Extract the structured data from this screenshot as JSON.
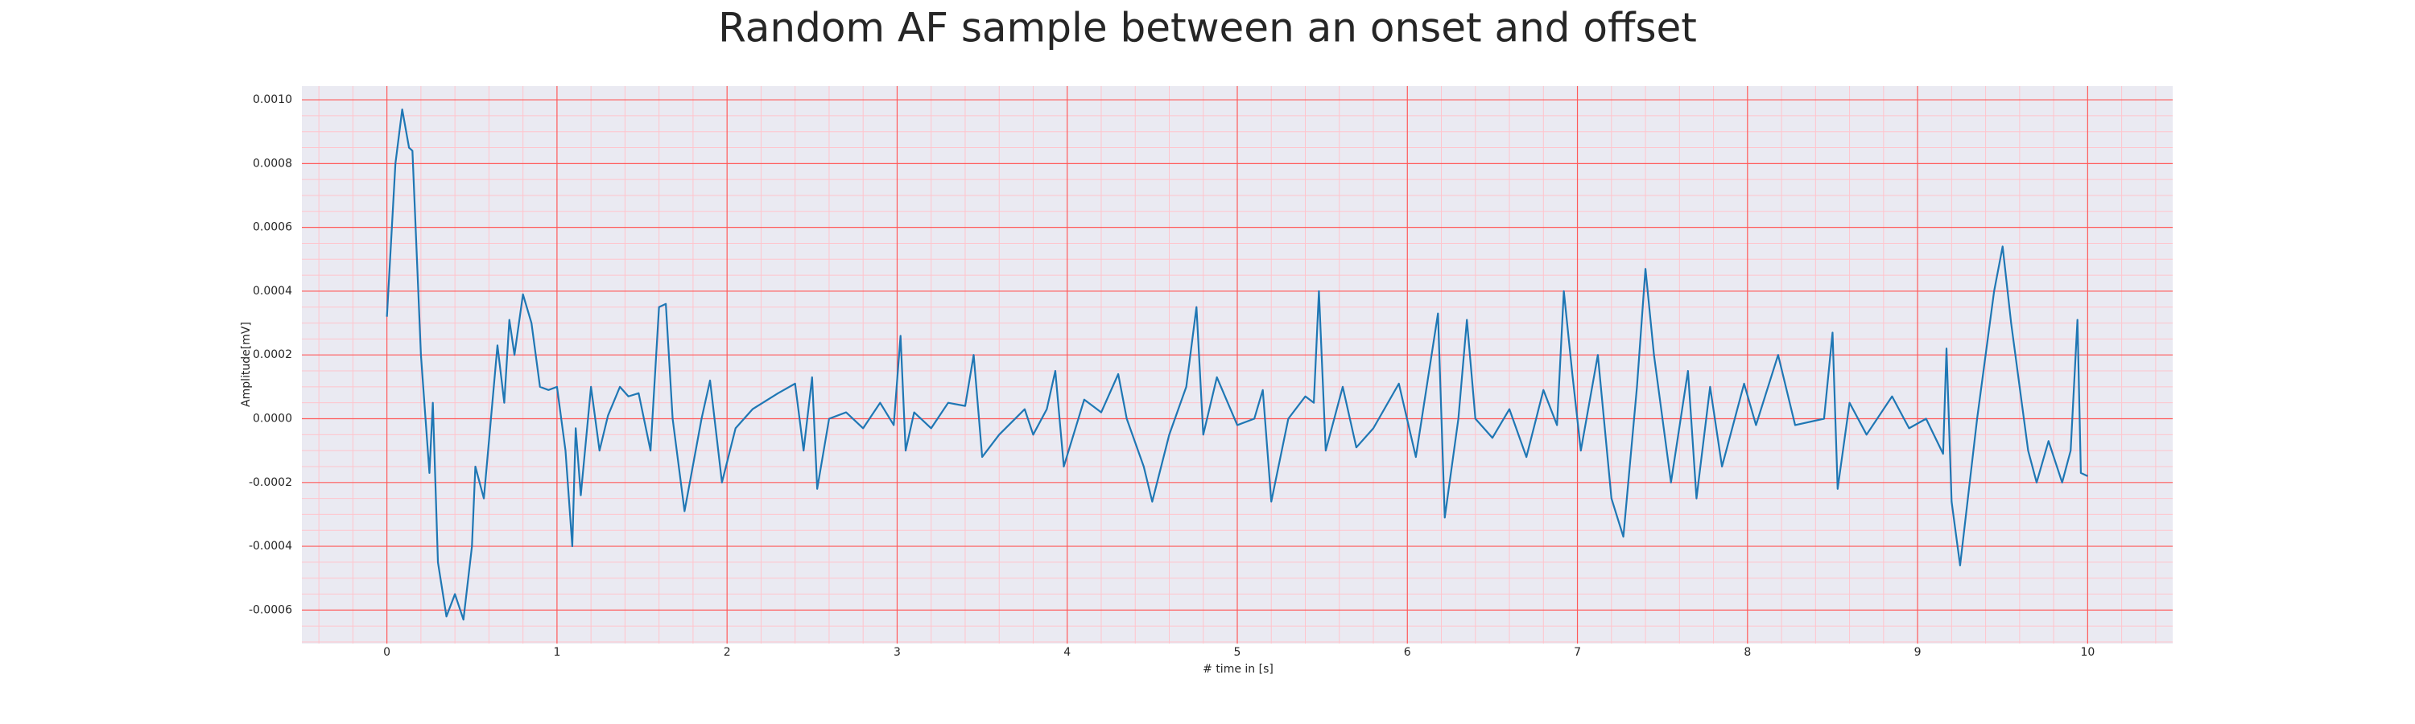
{
  "chart_data": {
    "type": "line",
    "title": "Random AF sample between an onset and offset",
    "x_label": "# time in [s]",
    "y_label": "Amplitude[mV]",
    "color": "#1f77b4",
    "background": "#eaeaf2",
    "grid": true,
    "grid_color": "#ff5a5a",
    "minor_grid_color": "#ffc4cc",
    "xlim": [
      -0.5,
      10.5
    ],
    "ylim": [
      -0.000705,
      0.001043
    ],
    "xticks": [
      0,
      1,
      2,
      3,
      4,
      5,
      6,
      7,
      8,
      9,
      10
    ],
    "yticks": [
      {
        "value": -0.0006,
        "label": "-0.0006"
      },
      {
        "value": -0.0004,
        "label": "-0.0004"
      },
      {
        "value": -0.0002,
        "label": "-0.0002"
      },
      {
        "value": 0,
        "label": "0.0000"
      },
      {
        "value": 0.0002,
        "label": "0.0002"
      },
      {
        "value": 0.0004,
        "label": "0.0004"
      },
      {
        "value": 0.0006,
        "label": "0.0006"
      },
      {
        "value": 0.0008,
        "label": "0.0008"
      },
      {
        "value": 0.001,
        "label": "0.0010"
      }
    ],
    "x_minor_ticks": [
      -0.4,
      -0.2,
      0.2,
      0.4,
      0.6,
      0.8,
      1.2,
      1.4,
      1.6,
      1.8,
      2.2,
      2.4,
      2.6,
      2.8,
      3.2,
      3.4,
      3.6,
      3.8,
      4.2,
      4.4,
      4.6,
      4.8,
      5.2,
      5.4,
      5.6,
      5.8,
      6.2,
      6.4,
      6.6,
      6.8,
      7.2,
      7.4,
      7.6,
      7.8,
      8.2,
      8.4,
      8.6,
      8.8,
      9.2,
      9.4,
      9.6,
      9.8,
      10.2,
      10.4
    ],
    "y_minor_ticks": [
      -0.0007,
      -0.00065,
      -0.00055,
      -0.0005,
      -0.00045,
      -0.00035,
      -0.0003,
      -0.00025,
      -0.00015,
      -0.0001,
      -5e-05,
      5e-05,
      0.0001,
      0.00015,
      0.00025,
      0.0003,
      0.00035,
      0.00045,
      0.0005,
      0.00055,
      0.00065,
      0.0007,
      0.00075,
      0.00085,
      0.0009,
      0.00095
    ],
    "x": [
      0,
      0.05,
      0.09,
      0.13,
      0.15,
      0.2,
      0.25,
      0.27,
      0.3,
      0.35,
      0.4,
      0.45,
      0.5,
      0.52,
      0.57,
      0.65,
      0.69,
      0.72,
      0.75,
      0.8,
      0.85,
      0.9,
      0.95,
      1.0,
      1.05,
      1.09,
      1.11,
      1.14,
      1.2,
      1.25,
      1.3,
      1.37,
      1.42,
      1.48,
      1.55,
      1.6,
      1.64,
      1.68,
      1.75,
      1.85,
      1.9,
      1.97,
      2.05,
      2.15,
      2.3,
      2.4,
      2.45,
      2.5,
      2.53,
      2.6,
      2.7,
      2.8,
      2.9,
      2.98,
      3.02,
      3.05,
      3.1,
      3.2,
      3.3,
      3.4,
      3.45,
      3.5,
      3.6,
      3.75,
      3.8,
      3.88,
      3.93,
      3.98,
      4.1,
      4.2,
      4.3,
      4.35,
      4.45,
      4.5,
      4.6,
      4.7,
      4.76,
      4.8,
      4.88,
      5.0,
      5.1,
      5.15,
      5.2,
      5.3,
      5.4,
      5.45,
      5.48,
      5.52,
      5.62,
      5.7,
      5.8,
      5.95,
      6.05,
      6.18,
      6.22,
      6.3,
      6.35,
      6.4,
      6.5,
      6.6,
      6.7,
      6.8,
      6.88,
      6.92,
      6.97,
      7.02,
      7.12,
      7.2,
      7.27,
      7.35,
      7.4,
      7.45,
      7.55,
      7.65,
      7.7,
      7.78,
      7.85,
      7.98,
      8.05,
      8.18,
      8.28,
      8.45,
      8.5,
      8.53,
      8.6,
      8.7,
      8.85,
      8.95,
      9.05,
      9.15,
      9.17,
      9.2,
      9.25,
      9.35,
      9.45,
      9.5,
      9.55,
      9.65,
      9.7,
      9.77,
      9.85,
      9.9,
      9.94,
      9.96,
      10.0
    ],
    "values": [
      0.00032,
      0.0008,
      0.00097,
      0.00085,
      0.00084,
      0.0002,
      -0.00017,
      5e-05,
      -0.00045,
      -0.00062,
      -0.00055,
      -0.00063,
      -0.0004,
      -0.00015,
      -0.00025,
      0.00023,
      5e-05,
      0.00031,
      0.0002,
      0.00039,
      0.0003,
      0.0001,
      9e-05,
      0.0001,
      -0.0001,
      -0.0004,
      -3e-05,
      -0.00024,
      0.0001,
      -0.0001,
      1e-05,
      0.0001,
      7e-05,
      8e-05,
      -0.0001,
      0.00035,
      0.00036,
      0.0,
      -0.00029,
      0.0,
      0.00012,
      -0.0002,
      -3e-05,
      3e-05,
      8e-05,
      0.00011,
      -0.0001,
      0.00013,
      -0.00022,
      0.0,
      2e-05,
      -3e-05,
      5e-05,
      -2e-05,
      0.00026,
      -0.0001,
      2e-05,
      -3e-05,
      5e-05,
      4e-05,
      0.0002,
      -0.00012,
      -5e-05,
      3e-05,
      -5e-05,
      3e-05,
      0.00015,
      -0.00015,
      6e-05,
      2e-05,
      0.00014,
      0.0,
      -0.00015,
      -0.00026,
      -5e-05,
      0.0001,
      0.00035,
      -5e-05,
      0.00013,
      -2e-05,
      0.0,
      9e-05,
      -0.00026,
      0.0,
      7e-05,
      5e-05,
      0.0004,
      -0.0001,
      0.0001,
      -9e-05,
      -3e-05,
      0.00011,
      -0.00012,
      0.00033,
      -0.00031,
      0.0,
      0.00031,
      0.0,
      -6e-05,
      3e-05,
      -0.00012,
      9e-05,
      -2e-05,
      0.0004,
      0.00014,
      -0.0001,
      0.0002,
      -0.00025,
      -0.00037,
      0.0001,
      0.00047,
      0.0002,
      -0.0002,
      0.00015,
      -0.00025,
      0.0001,
      -0.00015,
      0.00011,
      -2e-05,
      0.0002,
      -2e-05,
      0.0,
      0.00027,
      -0.00022,
      5e-05,
      -5e-05,
      7e-05,
      -3e-05,
      0.0,
      -0.00011,
      0.00022,
      -0.00026,
      -0.00046,
      0.0,
      0.0004,
      0.00054,
      0.0003,
      -0.0001,
      -0.0002,
      -7e-05,
      -0.0002,
      -0.0001,
      0.00031,
      -0.00017,
      -0.00018
    ]
  }
}
